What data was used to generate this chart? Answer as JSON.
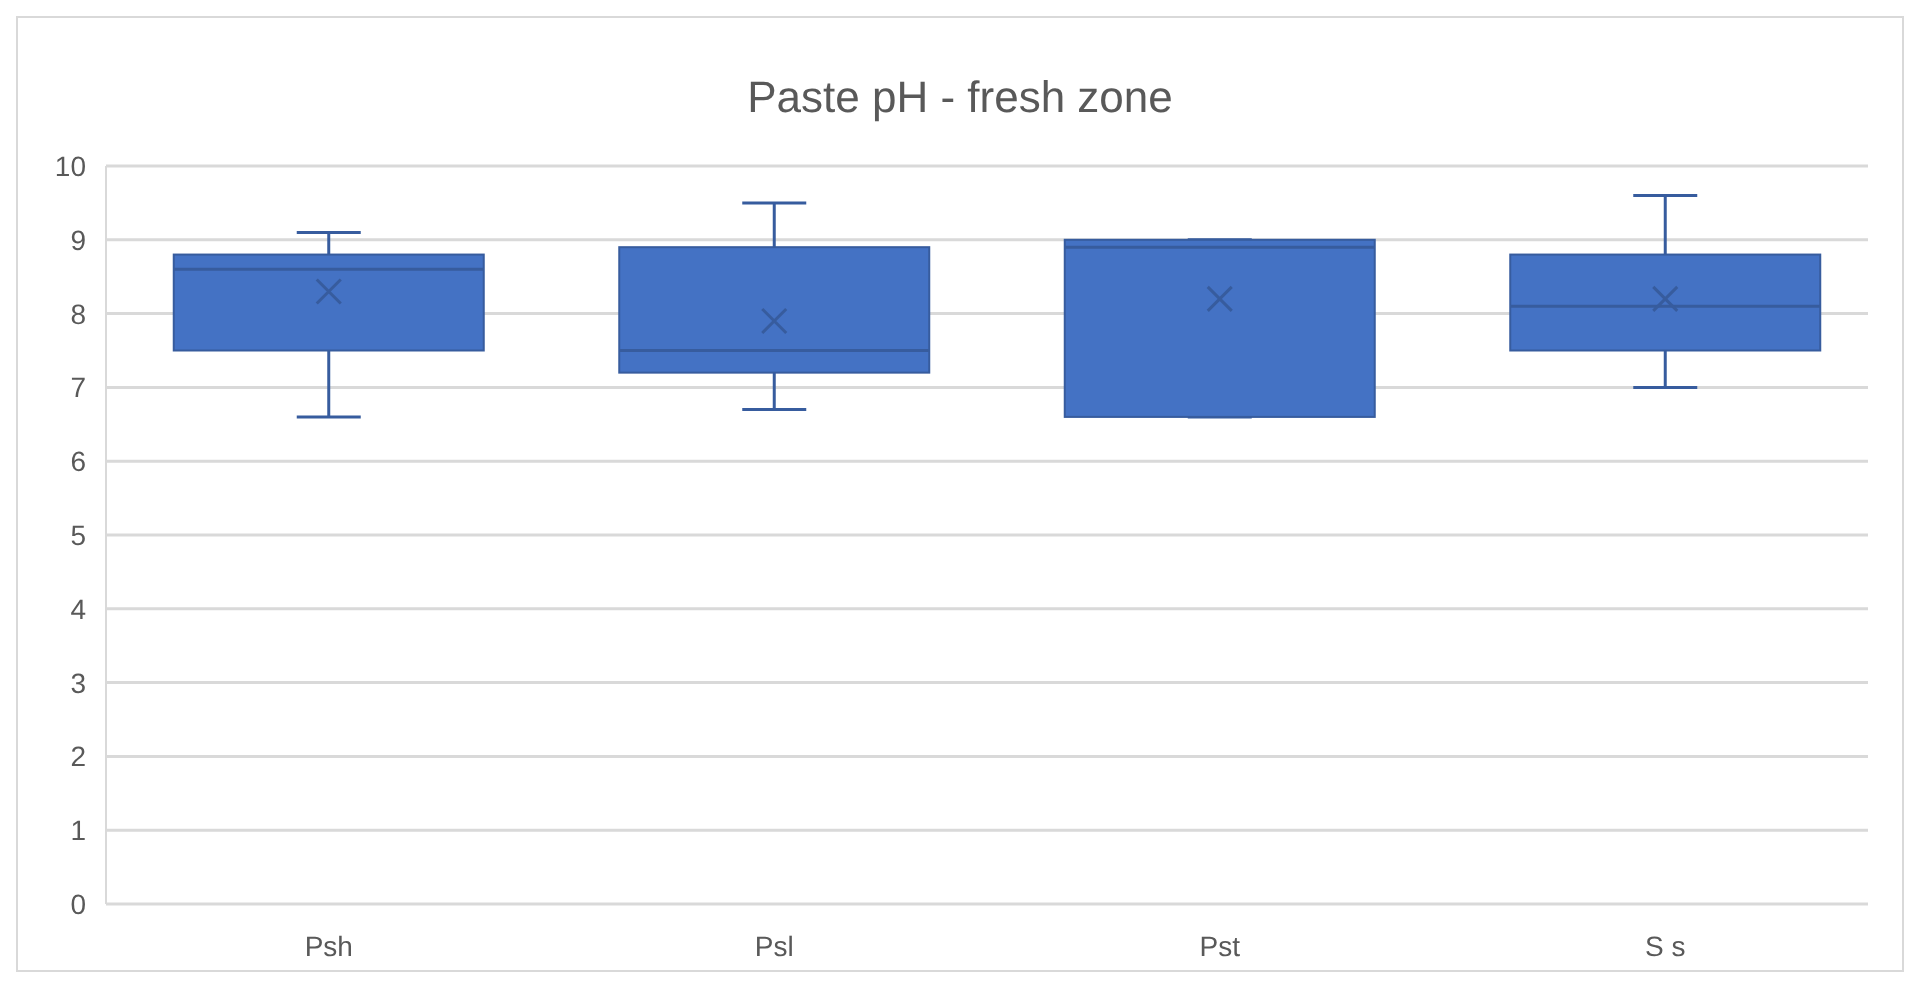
{
  "chart_data": {
    "type": "box",
    "title": "Paste pH - fresh zone",
    "categories": [
      "Psh",
      "Psl",
      "Pst",
      "S s"
    ],
    "color": "#4472c4",
    "boxes": [
      {
        "low": 6.6,
        "q1": 7.5,
        "median": 8.6,
        "q3": 8.8,
        "high": 9.1,
        "mean": 8.3
      },
      {
        "low": 6.7,
        "q1": 7.2,
        "median": 7.5,
        "q3": 8.9,
        "high": 9.5,
        "mean": 7.9
      },
      {
        "low": 6.6,
        "q1": 6.6,
        "median": 8.9,
        "q3": 9.0,
        "high": 9.0,
        "mean": 8.2
      },
      {
        "low": 7.0,
        "q1": 7.5,
        "median": 8.1,
        "q3": 8.8,
        "high": 9.6,
        "mean": 8.2
      }
    ],
    "ylim": [
      0,
      10
    ],
    "yticks": [
      0,
      1,
      2,
      3,
      4,
      5,
      6,
      7,
      8,
      9,
      10
    ],
    "grid": "y"
  }
}
